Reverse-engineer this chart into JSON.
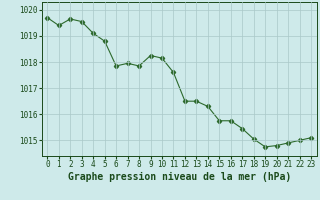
{
  "x": [
    0,
    1,
    2,
    3,
    4,
    5,
    6,
    7,
    8,
    9,
    10,
    11,
    12,
    13,
    14,
    15,
    16,
    17,
    18,
    19,
    20,
    21,
    22,
    23
  ],
  "y": [
    1019.7,
    1019.4,
    1019.65,
    1019.55,
    1019.1,
    1018.8,
    1017.85,
    1017.95,
    1017.85,
    1018.25,
    1018.15,
    1017.6,
    1016.5,
    1016.5,
    1016.3,
    1015.75,
    1015.75,
    1015.45,
    1015.05,
    1014.75,
    1014.8,
    1014.9,
    1015.0,
    1015.1
  ],
  "line_color": "#2d6a2d",
  "marker": "D",
  "marker_size": 2.2,
  "bg_color": "#ceeaea",
  "grid_color": "#aac8c8",
  "xlabel": "Graphe pression niveau de la mer (hPa)",
  "xlabel_fontsize": 7,
  "xlabel_color": "#1a4a1a",
  "xlabel_bold": true,
  "ylim": [
    1014.4,
    1020.3
  ],
  "xlim": [
    -0.5,
    23.5
  ],
  "yticks": [
    1015,
    1016,
    1017,
    1018,
    1019,
    1020
  ],
  "xtick_labels": [
    "0",
    "1",
    "2",
    "3",
    "4",
    "5",
    "6",
    "7",
    "8",
    "9",
    "10",
    "11",
    "12",
    "13",
    "14",
    "15",
    "16",
    "17",
    "18",
    "19",
    "20",
    "21",
    "22",
    "23"
  ],
  "tick_fontsize": 5.5,
  "tick_color": "#1a4a1a"
}
